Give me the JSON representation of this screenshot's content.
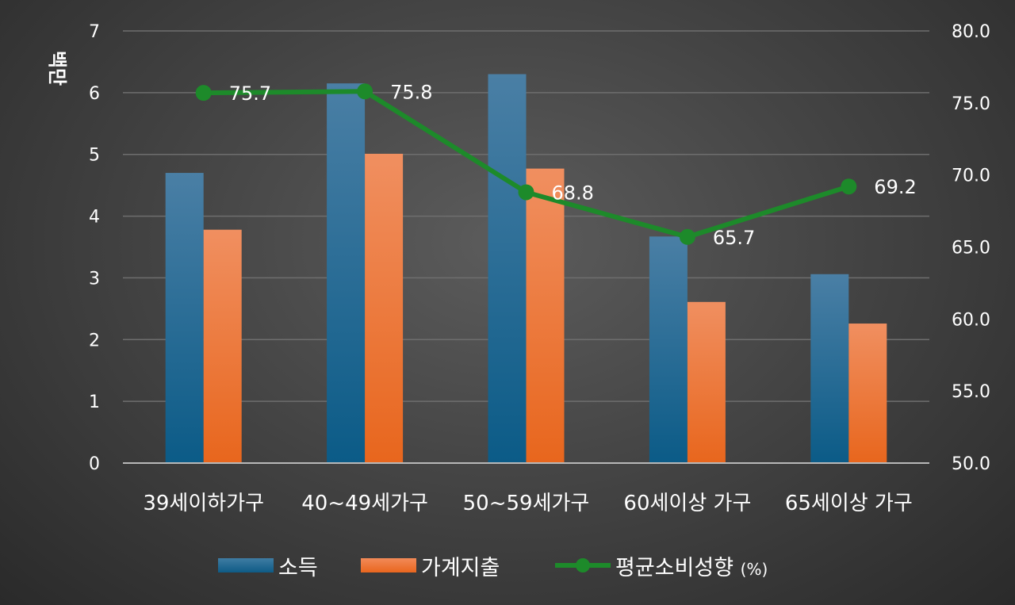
{
  "chart_data": {
    "type": "bar",
    "categories": [
      "39세이하가구",
      "40~49세가구",
      "50~59세가구",
      "60세이상 가구",
      "65세이상 가구"
    ],
    "series": [
      {
        "name": "소득",
        "type": "bar",
        "axis": "left",
        "values": [
          4.7,
          6.15,
          6.3,
          3.67,
          3.06
        ],
        "color": "#1a6a96"
      },
      {
        "name": "가계지출",
        "type": "bar",
        "axis": "left",
        "values": [
          3.78,
          5.01,
          4.77,
          2.61,
          2.26
        ],
        "color": "#ee7433"
      },
      {
        "name": "평균소비성향",
        "name_suffix": "(%)",
        "type": "line",
        "axis": "right",
        "values": [
          75.7,
          75.8,
          68.8,
          65.7,
          69.2
        ],
        "labels": [
          "75.7",
          "75.8",
          "68.8",
          "65.7",
          "69.2"
        ],
        "color": "#1d8a2a"
      }
    ],
    "ylabel": "백만",
    "ylim": [
      0,
      7
    ],
    "yticks": [
      "0",
      "1",
      "2",
      "3",
      "4",
      "5",
      "6",
      "7"
    ],
    "y2lim": [
      50,
      80
    ],
    "y2ticks": [
      "50.0",
      "55.0",
      "60.0",
      "65.0",
      "70.0",
      "75.0",
      "80.0"
    ],
    "grid": true,
    "legend_position": "bottom"
  }
}
